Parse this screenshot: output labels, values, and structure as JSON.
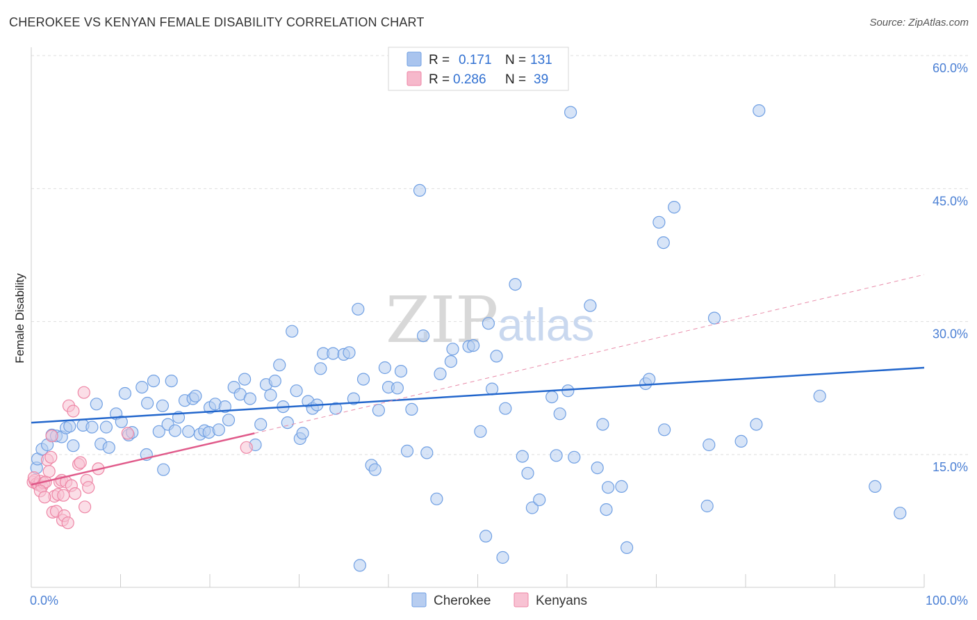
{
  "header": {
    "title": "CHEROKEE VS KENYAN FEMALE DISABILITY CORRELATION CHART",
    "source": "Source: ZipAtlas.com"
  },
  "watermark": {
    "zip": "ZIP",
    "atlas": "atlas"
  },
  "legend": {
    "rows": [
      {
        "r_label": "R =",
        "r_value": "0.171",
        "n_label": "N =",
        "n_value": "131",
        "color": "#a9c4ee"
      },
      {
        "r_label": "R =",
        "r_value": "0.286",
        "n_label": "N =",
        "n_value": "39",
        "color": "#f6b8cb"
      }
    ]
  },
  "chart_data": {
    "type": "scatter",
    "title": "CHEROKEE VS KENYAN FEMALE DISABILITY CORRELATION CHART",
    "xlabel": "",
    "ylabel": "Female Disability",
    "xlim": [
      0,
      100
    ],
    "ylim": [
      0,
      62
    ],
    "x_tick_labels": [
      "0.0%",
      "100.0%"
    ],
    "y_ticks": [
      15,
      30,
      45,
      60
    ],
    "y_tick_labels": [
      "15.0%",
      "30.0%",
      "45.0%",
      "60.0%"
    ],
    "grid": true,
    "legend_position": "top-center",
    "series": [
      {
        "name": "Cherokee",
        "color": "#6f9fe3",
        "fill": "#b7cdf0",
        "trend": {
          "x": [
            0,
            100
          ],
          "y": [
            18.6,
            24.8
          ],
          "color": "#2266cc",
          "style": "solid"
        },
        "points": [
          [
            0.6,
            13.5
          ],
          [
            0.7,
            14.5
          ],
          [
            1.2,
            15.6
          ],
          [
            1.8,
            16.1
          ],
          [
            2.3,
            17.2
          ],
          [
            2.8,
            17.1
          ],
          [
            3.4,
            17.0
          ],
          [
            3.9,
            18.0
          ],
          [
            4.3,
            18.2
          ],
          [
            4.7,
            16.0
          ],
          [
            5.8,
            18.3
          ],
          [
            6.8,
            18.1
          ],
          [
            7.3,
            20.7
          ],
          [
            7.8,
            16.2
          ],
          [
            8.4,
            18.1
          ],
          [
            8.7,
            15.8
          ],
          [
            9.5,
            19.6
          ],
          [
            10.1,
            18.7
          ],
          [
            10.5,
            21.9
          ],
          [
            10.9,
            17.2
          ],
          [
            11.3,
            17.5
          ],
          [
            12.4,
            22.6
          ],
          [
            12.9,
            15.0
          ],
          [
            13.0,
            20.8
          ],
          [
            13.7,
            23.3
          ],
          [
            14.3,
            17.6
          ],
          [
            14.7,
            20.5
          ],
          [
            15.3,
            18.4
          ],
          [
            15.7,
            23.3
          ],
          [
            16.1,
            17.7
          ],
          [
            16.5,
            19.2
          ],
          [
            17.2,
            21.1
          ],
          [
            17.6,
            17.6
          ],
          [
            18.1,
            21.3
          ],
          [
            18.4,
            21.6
          ],
          [
            18.9,
            17.3
          ],
          [
            19.4,
            17.7
          ],
          [
            19.9,
            17.5
          ],
          [
            20.0,
            20.3
          ],
          [
            20.6,
            20.7
          ],
          [
            21.0,
            17.8
          ],
          [
            21.7,
            20.4
          ],
          [
            22.1,
            18.9
          ],
          [
            22.7,
            22.6
          ],
          [
            23.4,
            21.8
          ],
          [
            23.9,
            23.5
          ],
          [
            24.5,
            21.3
          ],
          [
            25.1,
            16.1
          ],
          [
            25.7,
            18.4
          ],
          [
            26.3,
            22.9
          ],
          [
            26.8,
            21.7
          ],
          [
            27.3,
            23.3
          ],
          [
            27.8,
            25.1
          ],
          [
            28.2,
            20.4
          ],
          [
            28.7,
            18.6
          ],
          [
            29.2,
            28.9
          ],
          [
            29.7,
            22.2
          ],
          [
            30.1,
            16.8
          ],
          [
            30.4,
            17.4
          ],
          [
            31.0,
            21.0
          ],
          [
            31.5,
            20.2
          ],
          [
            32.0,
            20.6
          ],
          [
            32.4,
            24.7
          ],
          [
            32.7,
            26.4
          ],
          [
            33.8,
            26.4
          ],
          [
            34.1,
            20.2
          ],
          [
            35.0,
            26.3
          ],
          [
            35.6,
            26.5
          ],
          [
            36.1,
            21.3
          ],
          [
            36.6,
            31.4
          ],
          [
            37.2,
            23.5
          ],
          [
            38.1,
            13.8
          ],
          [
            38.5,
            13.3
          ],
          [
            38.9,
            20.0
          ],
          [
            39.6,
            24.8
          ],
          [
            40.0,
            22.6
          ],
          [
            41.0,
            22.5
          ],
          [
            41.4,
            24.4
          ],
          [
            42.1,
            15.4
          ],
          [
            42.6,
            20.1
          ],
          [
            43.5,
            44.8
          ],
          [
            43.9,
            28.4
          ],
          [
            44.3,
            15.2
          ],
          [
            45.8,
            24.1
          ],
          [
            47.0,
            25.5
          ],
          [
            47.2,
            26.9
          ],
          [
            49.0,
            27.2
          ],
          [
            49.5,
            27.3
          ],
          [
            50.3,
            17.6
          ],
          [
            51.2,
            29.8
          ],
          [
            51.6,
            22.4
          ],
          [
            52.1,
            26.1
          ],
          [
            53.1,
            20.2
          ],
          [
            54.2,
            34.2
          ],
          [
            55.0,
            14.8
          ],
          [
            55.6,
            12.9
          ],
          [
            56.1,
            9.0
          ],
          [
            58.3,
            21.5
          ],
          [
            59.2,
            19.6
          ],
          [
            60.1,
            22.2
          ],
          [
            60.4,
            53.6
          ],
          [
            60.8,
            14.7
          ],
          [
            62.6,
            31.8
          ],
          [
            63.4,
            13.5
          ],
          [
            64.0,
            18.4
          ],
          [
            64.6,
            11.3
          ],
          [
            64.4,
            8.8
          ],
          [
            68.8,
            23.0
          ],
          [
            69.2,
            23.5
          ],
          [
            70.3,
            41.2
          ],
          [
            70.8,
            38.9
          ],
          [
            70.9,
            17.8
          ],
          [
            72.0,
            42.9
          ],
          [
            75.7,
            9.2
          ],
          [
            75.9,
            16.1
          ],
          [
            76.5,
            30.4
          ],
          [
            79.5,
            16.5
          ],
          [
            81.2,
            18.4
          ],
          [
            81.5,
            53.8
          ],
          [
            88.3,
            21.6
          ],
          [
            94.5,
            11.4
          ],
          [
            97.3,
            8.4
          ],
          [
            36.8,
            2.5
          ],
          [
            52.8,
            3.4
          ],
          [
            56.9,
            9.9
          ],
          [
            50.9,
            5.8
          ],
          [
            58.8,
            14.9
          ],
          [
            66.7,
            4.5
          ],
          [
            66.1,
            11.4
          ],
          [
            45.4,
            10.0
          ],
          [
            14.8,
            13.3
          ]
        ]
      },
      {
        "name": "Kenyans",
        "color": "#ee85a5",
        "fill": "#f8c2d3",
        "trend": {
          "x": [
            0,
            25
          ],
          "y": [
            11.6,
            17.4
          ],
          "color": "#e05a8a",
          "style": "solid"
        },
        "trend_extended": {
          "x": [
            25,
            100
          ],
          "y": [
            17.4,
            35.3
          ],
          "color": "#e88aa8",
          "style": "dashed"
        },
        "points": [
          [
            0.2,
            11.9
          ],
          [
            0.4,
            12.1
          ],
          [
            0.6,
            11.7
          ],
          [
            0.8,
            11.6
          ],
          [
            1.0,
            12.0
          ],
          [
            1.2,
            11.4
          ],
          [
            1.4,
            11.8
          ],
          [
            1.6,
            11.9
          ],
          [
            1.8,
            14.4
          ],
          [
            2.0,
            13.1
          ],
          [
            2.2,
            14.7
          ],
          [
            2.3,
            17.1
          ],
          [
            2.4,
            8.5
          ],
          [
            2.6,
            10.3
          ],
          [
            2.8,
            8.6
          ],
          [
            3.0,
            10.5
          ],
          [
            3.2,
            11.9
          ],
          [
            3.4,
            12.1
          ],
          [
            3.5,
            7.6
          ],
          [
            3.6,
            10.4
          ],
          [
            3.7,
            8.1
          ],
          [
            3.9,
            11.9
          ],
          [
            4.1,
            7.3
          ],
          [
            4.2,
            20.5
          ],
          [
            4.5,
            11.5
          ],
          [
            4.7,
            19.9
          ],
          [
            4.9,
            10.6
          ],
          [
            5.3,
            13.9
          ],
          [
            5.5,
            14.1
          ],
          [
            5.9,
            22.0
          ],
          [
            6.0,
            9.1
          ],
          [
            6.2,
            12.1
          ],
          [
            6.4,
            11.3
          ],
          [
            7.5,
            13.4
          ],
          [
            10.8,
            17.4
          ],
          [
            24.1,
            15.8
          ],
          [
            1.0,
            10.9
          ],
          [
            1.5,
            10.2
          ],
          [
            0.3,
            12.4
          ]
        ]
      }
    ]
  },
  "bottom_legend": [
    {
      "label": "Cherokee",
      "color": "#b7cdf0",
      "stroke": "#6f9fe3"
    },
    {
      "label": "Kenyans",
      "color": "#f8c2d3",
      "stroke": "#ee85a5"
    }
  ]
}
